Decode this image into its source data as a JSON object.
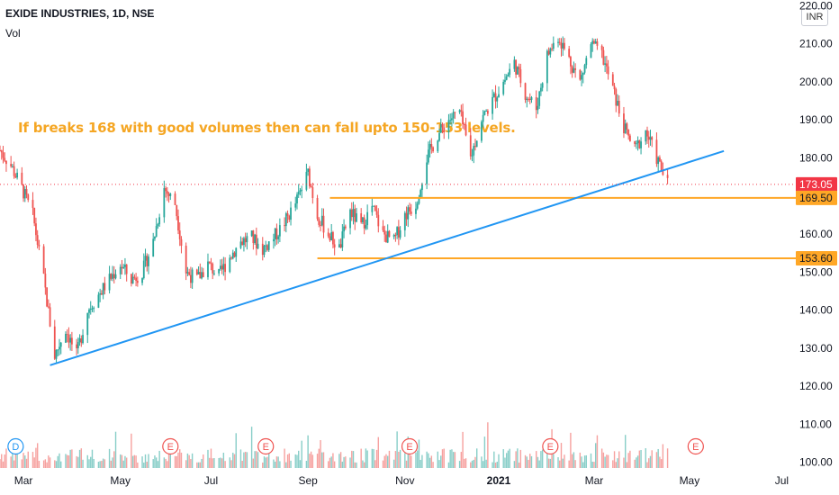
{
  "header": {
    "title": "EXIDE INDUSTRIES, 1D, NSE",
    "volume_label": "Vol",
    "currency": "INR"
  },
  "annotation": "If breaks 168 with good volumes then can fall upto 150-153 levels.",
  "colors": {
    "up": "#26a69a",
    "down": "#ef5350",
    "trendline": "#2196f3",
    "level": "#ffa726",
    "last_price": "#f23645"
  },
  "chart_data": {
    "type": "candlestick",
    "y_axis": {
      "ticks": [
        100,
        110,
        120,
        130,
        140,
        150,
        160,
        170,
        180,
        190,
        200,
        210,
        220
      ],
      "tick_labels": [
        "100.00",
        "110.00",
        "120.00",
        "130.00",
        "140.00",
        "150.00",
        "160.00",
        "170.00",
        "180.00",
        "190.00",
        "200.00",
        "210.00",
        "220.00"
      ],
      "ylim": [
        98.5,
        221.5
      ]
    },
    "x_axis": {
      "tick_labels": [
        "Mar",
        "May",
        "Jul",
        "Sep",
        "Nov",
        "2021",
        "Mar",
        "May",
        "Jul"
      ],
      "range": [
        "2020-02-17",
        "2021-07-10"
      ]
    },
    "price_points": [
      [
        "2020-02-17",
        182
      ],
      [
        "2020-02-24",
        178
      ],
      [
        "2020-03-02",
        172
      ],
      [
        "2020-03-09",
        165
      ],
      [
        "2020-03-16",
        148
      ],
      [
        "2020-03-23",
        128
      ],
      [
        "2020-03-30",
        135
      ],
      [
        "2020-04-06",
        128
      ],
      [
        "2020-04-13",
        140
      ],
      [
        "2020-04-20",
        144
      ],
      [
        "2020-04-27",
        148
      ],
      [
        "2020-05-04",
        152
      ],
      [
        "2020-05-11",
        148
      ],
      [
        "2020-05-18",
        150
      ],
      [
        "2020-05-25",
        158
      ],
      [
        "2020-06-01",
        172
      ],
      [
        "2020-06-08",
        168
      ],
      [
        "2020-06-15",
        150
      ],
      [
        "2020-06-22",
        148
      ],
      [
        "2020-06-29",
        152
      ],
      [
        "2020-07-06",
        149
      ],
      [
        "2020-07-13",
        154
      ],
      [
        "2020-07-20",
        158
      ],
      [
        "2020-07-27",
        159
      ],
      [
        "2020-08-03",
        156
      ],
      [
        "2020-08-10",
        159
      ],
      [
        "2020-08-17",
        163
      ],
      [
        "2020-08-24",
        168
      ],
      [
        "2020-09-01",
        176
      ],
      [
        "2020-09-07",
        165
      ],
      [
        "2020-09-14",
        160
      ],
      [
        "2020-09-21",
        156
      ],
      [
        "2020-09-28",
        166
      ],
      [
        "2020-10-05",
        162
      ],
      [
        "2020-10-12",
        167
      ],
      [
        "2020-10-19",
        160
      ],
      [
        "2020-10-26",
        158
      ],
      [
        "2020-11-02",
        165
      ],
      [
        "2020-11-09",
        168
      ],
      [
        "2020-11-16",
        180
      ],
      [
        "2020-11-23",
        186
      ],
      [
        "2020-11-30",
        190
      ],
      [
        "2020-12-07",
        192
      ],
      [
        "2020-12-14",
        180
      ],
      [
        "2020-12-21",
        190
      ],
      [
        "2020-12-28",
        195
      ],
      [
        "2021-01-04",
        200
      ],
      [
        "2021-01-11",
        205
      ],
      [
        "2021-01-18",
        197
      ],
      [
        "2021-01-25",
        193
      ],
      [
        "2021-02-01",
        207
      ],
      [
        "2021-02-08",
        212
      ],
      [
        "2021-02-15",
        206
      ],
      [
        "2021-02-22",
        200
      ],
      [
        "2021-03-01",
        210
      ],
      [
        "2021-03-08",
        207
      ],
      [
        "2021-03-15",
        198
      ],
      [
        "2021-03-22",
        188
      ],
      [
        "2021-03-29",
        182
      ],
      [
        "2021-04-05",
        187
      ],
      [
        "2021-04-12",
        180
      ],
      [
        "2021-04-19",
        173
      ]
    ],
    "last_price": {
      "value": 173.05,
      "label": "173.05"
    },
    "levels": [
      {
        "value": 169.5,
        "label": "169.50",
        "start": "2020-09-15"
      },
      {
        "value": 153.6,
        "label": "153.60",
        "start": "2020-09-07"
      }
    ],
    "trendline": {
      "from": {
        "x": "2020-03-20",
        "y": 125.5
      },
      "to": {
        "x": "2021-05-25",
        "y": 181.8
      }
    },
    "events": [
      {
        "label": "D",
        "date": "2020-02-27",
        "kind": "dividend"
      },
      {
        "label": "E",
        "date": "2020-06-05",
        "kind": "earnings"
      },
      {
        "label": "E",
        "date": "2020-08-05",
        "kind": "earnings"
      },
      {
        "label": "E",
        "date": "2020-11-05",
        "kind": "earnings"
      },
      {
        "label": "E",
        "date": "2021-02-03",
        "kind": "earnings"
      },
      {
        "label": "E",
        "date": "2021-05-07",
        "kind": "earnings"
      }
    ]
  }
}
